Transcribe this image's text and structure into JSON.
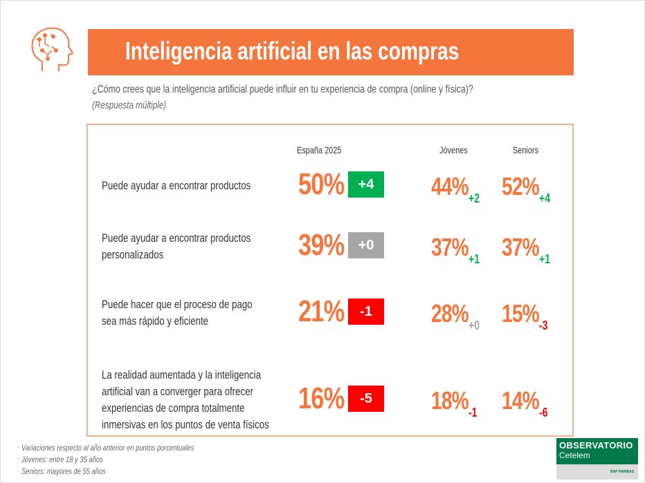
{
  "header": {
    "title": "Inteligencia artificial en las compras",
    "icon": "brain-circuit-icon",
    "question": "¿Cómo crees que la inteligencia artificial puede influir en tu experiencia de compra (online y física)?",
    "note": "(Respuesta múltiple)"
  },
  "colors": {
    "accent": "#f4763d",
    "positive": "#00b050",
    "neutral": "#a6a6a6",
    "negative": "#ff0000"
  },
  "columns": [
    "España 2025",
    "Jóvenes",
    "Seniors"
  ],
  "rows": [
    {
      "label": [
        "Puede ayudar a encontrar productos"
      ],
      "spain": "50%",
      "spain_delta": "+4",
      "spain_tone": "positive",
      "jovenes": "44%",
      "jovenes_delta": "+2",
      "jovenes_tone": "positive",
      "seniors": "52%",
      "seniors_delta": "+4",
      "seniors_tone": "positive"
    },
    {
      "label": [
        "Puede ayudar a encontrar productos",
        "personalizados"
      ],
      "spain": "39%",
      "spain_delta": "+0",
      "spain_tone": "neutral",
      "jovenes": "37%",
      "jovenes_delta": "+1",
      "jovenes_tone": "positive",
      "seniors": "37%",
      "seniors_delta": "+1",
      "seniors_tone": "positive"
    },
    {
      "label": [
        "Puede hacer que el proceso de pago",
        "sea más rápido y eficiente"
      ],
      "spain": "21%",
      "spain_delta": "-1",
      "spain_tone": "negative",
      "jovenes": "28%",
      "jovenes_delta": "+0",
      "jovenes_tone": "neutral",
      "seniors": "15%",
      "seniors_delta": "-3",
      "seniors_tone": "negative"
    },
    {
      "label": [
        "La realidad aumentada y la inteligencia",
        "artificial van a converger para ofrecer",
        "experiencias de compra totalmente",
        "inmersivas en los puntos de venta físicos"
      ],
      "spain": "16%",
      "spain_delta": "-5",
      "spain_tone": "negative",
      "jovenes": "18%",
      "jovenes_delta": "-1",
      "jovenes_tone": "negative",
      "seniors": "14%",
      "seniors_delta": "-6",
      "seniors_tone": "negative"
    }
  ],
  "footnotes": [
    "Variaciones respecto al año anterior en puntos porcentuales",
    "Jóvenes: entre 18 y 35 años",
    "Seniors: mayores de 55 años"
  ],
  "logo": {
    "line1": "OBSERVATORIO",
    "line2": "Cetelem",
    "line3": "BNP PARIBAS"
  }
}
